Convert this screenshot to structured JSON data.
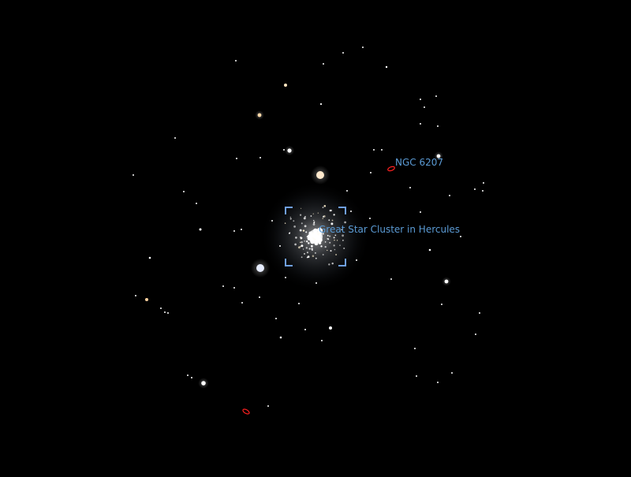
{
  "sky_view": {
    "background_color": "#000000",
    "label_color": "#5b9bd5",
    "selection_marker_color": "#6f9fe0",
    "galaxy_marker_color": "#ff2020",
    "selected_object": {
      "name": "Great Star Cluster in Hercules",
      "marker_icon": "selection-bracket-icon"
    },
    "labeled_objects": [
      {
        "name": "NGC 6207",
        "marker_icon": "galaxy-ellipse-icon"
      }
    ],
    "unlabeled_markers": [
      {
        "marker_icon": "galaxy-ellipse-icon"
      }
    ]
  }
}
